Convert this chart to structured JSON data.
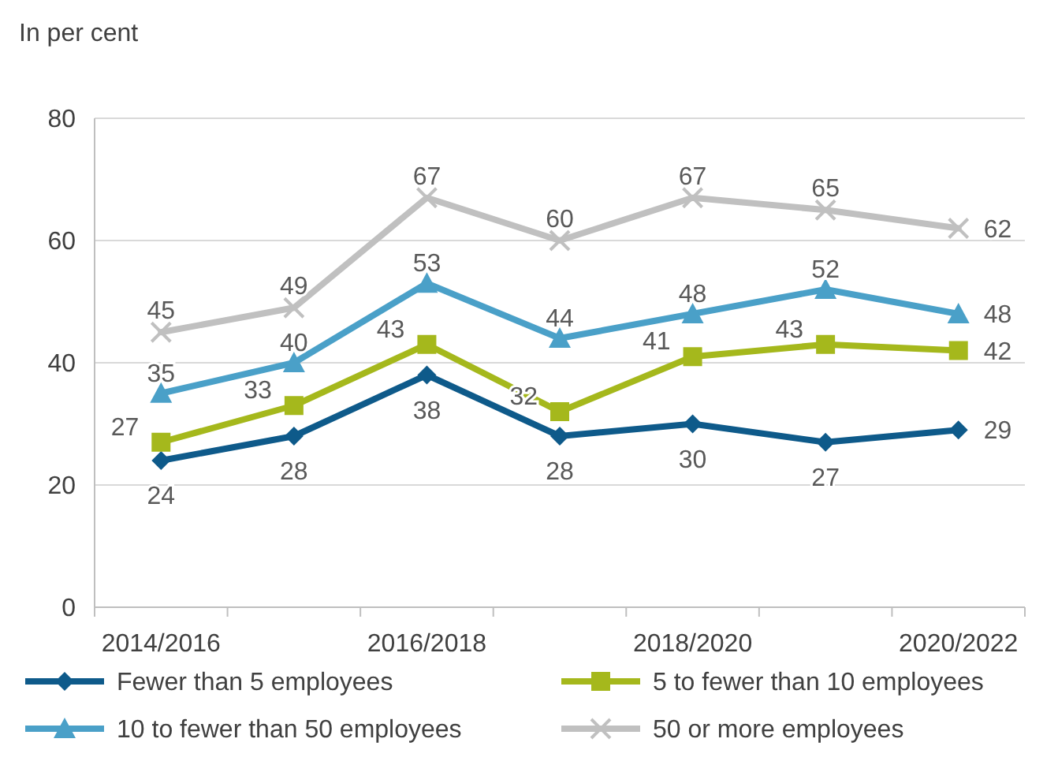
{
  "chart_data": {
    "type": "line",
    "ylabel": "In per cent",
    "categories": [
      "2014/2016",
      null,
      "2016/2018",
      null,
      "2018/2020",
      null,
      "2020/2022"
    ],
    "ylim": [
      0,
      80
    ],
    "yticks": [
      0,
      20,
      40,
      60,
      80
    ],
    "grid": "y",
    "legend": "bottom",
    "data_labels": true,
    "series": [
      {
        "name": "Fewer than 5 employees",
        "color": "#0e5a8a",
        "marker": "diamond",
        "values": [
          24,
          28,
          38,
          28,
          30,
          27,
          29
        ]
      },
      {
        "name": "5 to fewer than 10 employees",
        "color": "#a5b81c",
        "marker": "square",
        "values": [
          27,
          33,
          43,
          32,
          41,
          43,
          42
        ]
      },
      {
        "name": "10 to fewer than 50 employees",
        "color": "#4aa0c8",
        "marker": "triangle",
        "values": [
          35,
          40,
          53,
          44,
          48,
          52,
          48
        ]
      },
      {
        "name": "50 or more employees",
        "color": "#c0c0c0",
        "marker": "cross",
        "values": [
          45,
          49,
          67,
          60,
          67,
          65,
          62
        ]
      }
    ]
  }
}
